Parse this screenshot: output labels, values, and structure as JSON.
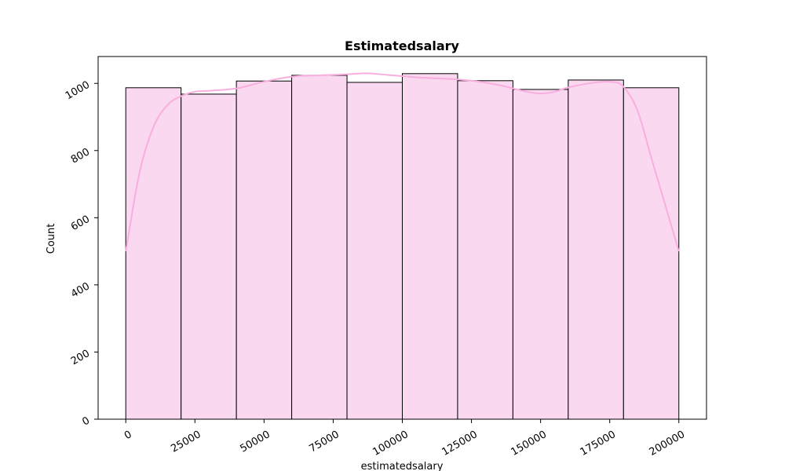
{
  "chart_data": {
    "type": "bar",
    "title": "Estimatedsalary",
    "xlabel": "estimatedsalary",
    "ylabel": "Count",
    "bin_edges": [
      0,
      20000,
      40000,
      60000,
      80000,
      100000,
      120000,
      140000,
      160000,
      180000,
      200000
    ],
    "values": [
      987,
      968,
      1007,
      1024,
      1003,
      1029,
      1008,
      982,
      1010,
      987
    ],
    "xlim": [
      -10000,
      210000
    ],
    "ylim": [
      0,
      1080
    ],
    "x_ticks": [
      0,
      25000,
      50000,
      75000,
      100000,
      125000,
      150000,
      175000,
      200000
    ],
    "x_tick_labels": [
      "0",
      "25000",
      "50000",
      "75000",
      "100000",
      "125000",
      "150000",
      "175000",
      "200000"
    ],
    "y_ticks": [
      0,
      200,
      400,
      600,
      800,
      1000
    ],
    "y_tick_labels": [
      "0",
      "200",
      "400",
      "600",
      "800",
      "1000"
    ],
    "kde": {
      "x": [
        0,
        5000,
        10000,
        15000,
        20000,
        25000,
        30000,
        40000,
        50000,
        60000,
        70000,
        80000,
        87000,
        95000,
        105000,
        115000,
        125000,
        135000,
        145000,
        150000,
        155000,
        160000,
        170000,
        176000,
        180000,
        185000,
        190000,
        195000,
        200000
      ],
      "y": [
        500,
        735,
        870,
        935,
        962,
        975,
        978,
        985,
        1005,
        1020,
        1024,
        1027,
        1030,
        1025,
        1018,
        1014,
        1008,
        995,
        975,
        970,
        975,
        988,
        1003,
        1004,
        990,
        920,
        780,
        640,
        500
      ]
    },
    "grid": false,
    "colors": {
      "bar_fill": "#fad8f0",
      "bar_edge": "#000000",
      "kde_line": "#f8aede",
      "axis": "#000000"
    }
  }
}
